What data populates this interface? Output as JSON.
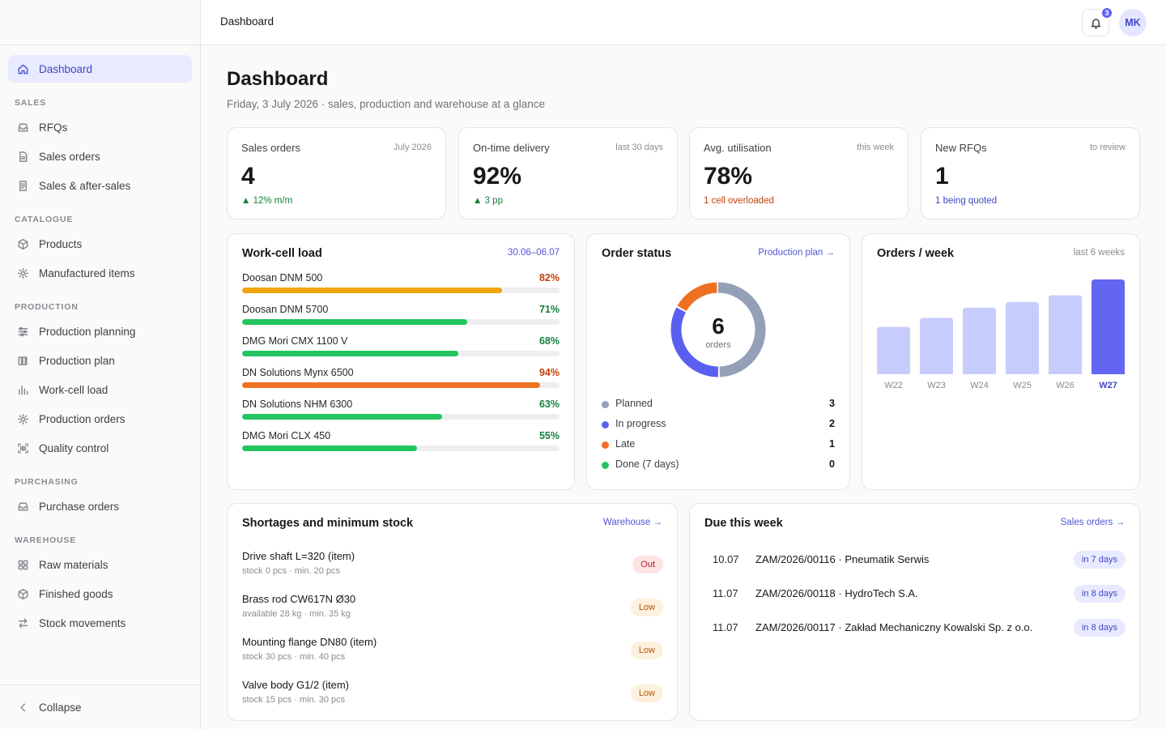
{
  "topbar": {
    "title": "Dashboard",
    "notifications_count": "3",
    "avatar_initials": "MK"
  },
  "sidebar": {
    "dashboard": {
      "label": "Dashboard",
      "icon": "home-icon"
    },
    "sections": {
      "sales": "SALES",
      "catalogue": "CATALOGUE",
      "production": "PRODUCTION",
      "purchasing": "PURCHASING",
      "warehouse": "WAREHOUSE"
    },
    "items": {
      "rfqs": "RFQs",
      "sales_orders": "Sales orders",
      "after_sales": "Sales & after-sales",
      "products": "Products",
      "manufactured_items": "Manufactured items",
      "production_planning": "Production planning",
      "production_plan": "Production plan",
      "work_cell_load": "Work-cell load",
      "production_orders": "Production orders",
      "quality_control": "Quality control",
      "purchase_orders": "Purchase orders",
      "raw_materials": "Raw materials",
      "finished_goods": "Finished goods",
      "stock_movements": "Stock movements"
    },
    "collapse": "Collapse"
  },
  "page": {
    "title": "Dashboard",
    "subtitle": "Friday, 3 July 2026 · sales, production and warehouse at a glance"
  },
  "kpis": [
    {
      "label": "Sales orders",
      "period": "July 2026",
      "value": "4",
      "foot": "▲ 12% m/m",
      "tone": "green"
    },
    {
      "label": "On-time delivery",
      "period": "last 30 days",
      "value": "92%",
      "foot": "▲ 3 pp",
      "tone": "green"
    },
    {
      "label": "Avg. utilisation",
      "period": "this week",
      "value": "78%",
      "foot": "1 cell overloaded",
      "tone": "orange"
    },
    {
      "label": "New RFQs",
      "period": "to review",
      "value": "1",
      "foot": "1 being quoted",
      "tone": "blue"
    }
  ],
  "work_cell_load": {
    "title": "Work-cell load",
    "range": "30.06–06.07",
    "rows": [
      {
        "name": "Doosan DNM 500",
        "pct_label": "82%",
        "pct": 82,
        "color": "#f0a30a",
        "text_color": "#c2410c"
      },
      {
        "name": "Doosan DNM 5700",
        "pct_label": "71%",
        "pct": 71,
        "color": "#22c55e",
        "text_color": "#15803d"
      },
      {
        "name": "DMG Mori CMX 1100 V",
        "pct_label": "68%",
        "pct": 68,
        "color": "#22c55e",
        "text_color": "#15803d"
      },
      {
        "name": "DN Solutions Mynx 6500",
        "pct_label": "94%",
        "pct": 94,
        "color": "#f07023",
        "text_color": "#c2410c"
      },
      {
        "name": "DN Solutions NHM 6300",
        "pct_label": "63%",
        "pct": 63,
        "color": "#22c55e",
        "text_color": "#15803d"
      },
      {
        "name": "DMG Mori CLX 450",
        "pct_label": "55%",
        "pct": 55,
        "color": "#22c55e",
        "text_color": "#15803d"
      }
    ]
  },
  "order_status": {
    "title": "Order status",
    "link": "Production plan →",
    "total": "6",
    "total_label": "orders",
    "items": [
      {
        "label": "Planned",
        "value": 3,
        "color": "#94a0b8"
      },
      {
        "label": "In progress",
        "value": 2,
        "color": "#5b5ff0"
      },
      {
        "label": "Late",
        "value": 1,
        "color": "#f07023"
      },
      {
        "label": "Done (7 days)",
        "value": 0,
        "color": "#22c55e"
      }
    ]
  },
  "chart_data": {
    "type": "bar",
    "title": "Orders / week",
    "subtitle": "last 6 weeks",
    "categories": [
      "W22",
      "W23",
      "W24",
      "W25",
      "W26",
      "W27"
    ],
    "values": [
      2.1,
      2.5,
      2.95,
      3.2,
      3.5,
      4.2
    ],
    "highlight": "W27",
    "colors": {
      "bar": "#c7ccff",
      "highlight": "#6366f1"
    },
    "xlabel": "",
    "ylabel": "",
    "ylim": [
      0,
      4.2
    ]
  },
  "shortages": {
    "title": "Shortages and minimum stock",
    "link": "Warehouse →",
    "rows": [
      {
        "name": "Drive shaft L=320 (item)",
        "sub": "stock 0 pcs · min. 20 pcs",
        "status": "Out"
      },
      {
        "name": "Brass rod CW617N Ø30",
        "sub": "available 28 kg · min. 35 kg",
        "status": "Low"
      },
      {
        "name": "Mounting flange DN80 (item)",
        "sub": "stock 30 pcs · min. 40 pcs",
        "status": "Low"
      },
      {
        "name": "Valve body G1/2 (item)",
        "sub": "stock 15 pcs · min. 30 pcs",
        "status": "Low"
      }
    ]
  },
  "due": {
    "title": "Due this week",
    "link": "Sales orders →",
    "rows": [
      {
        "date": "10.07",
        "text": "ZAM/2026/00116 · Pneumatik Serwis",
        "badge": "in 7 days"
      },
      {
        "date": "11.07",
        "text": "ZAM/2026/00118 · HydroTech S.A.",
        "badge": "in 8 days"
      },
      {
        "date": "11.07",
        "text": "ZAM/2026/00117 · Zakład Mechaniczny Kowalski Sp. z o.o.",
        "badge": "in 8 days"
      }
    ]
  }
}
